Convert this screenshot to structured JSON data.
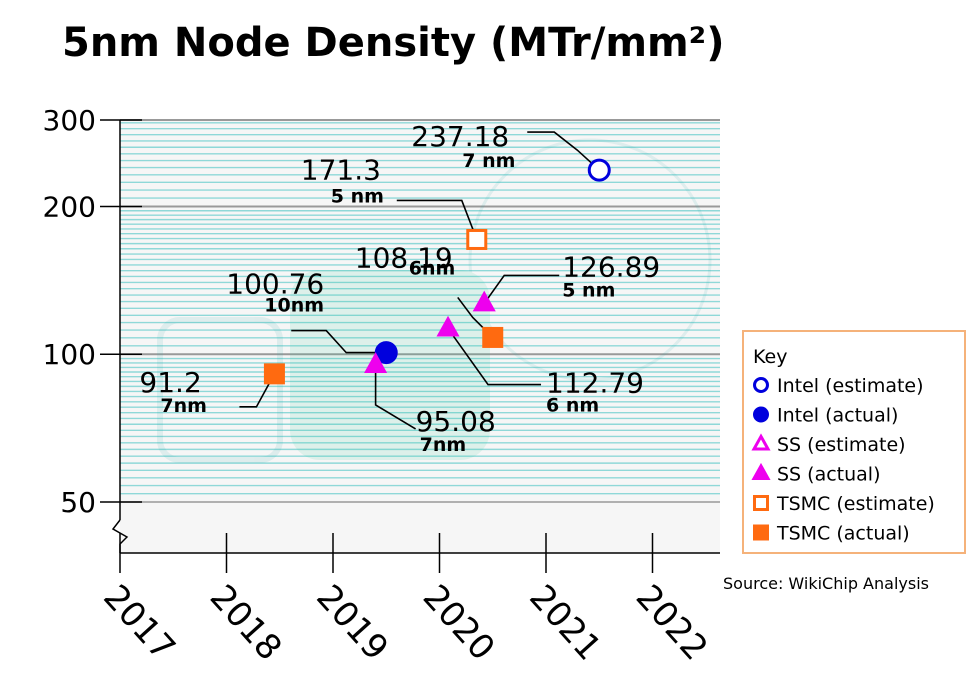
{
  "chart_data": {
    "type": "scatter",
    "title": "5nm Node Density (MTr/mm²)",
    "xlabel": "",
    "ylabel": "",
    "yscale": "log",
    "ylim": [
      44,
      300
    ],
    "xlim": [
      2017,
      2022.65
    ],
    "y_ticks": [
      "300",
      "200",
      "100",
      "50"
    ],
    "x_ticks": [
      "2017",
      "2018",
      "2019",
      "2020",
      "2021",
      "2022"
    ],
    "series": [
      {
        "name": "Intel (estimate)",
        "marker": "circle",
        "filled": false,
        "color": "#0000dd",
        "points": [
          {
            "x": 2021.5,
            "y": 237.18,
            "label": "237.18",
            "node": "7 nm"
          }
        ]
      },
      {
        "name": "Intel (actual)",
        "marker": "circle",
        "filled": true,
        "color": "#0000dd",
        "points": [
          {
            "x": 2019.5,
            "y": 100.76,
            "label": "100.76",
            "node": "10nm"
          }
        ]
      },
      {
        "name": "SS (estimate)",
        "marker": "triangle",
        "filled": false,
        "color": "#ee00ee",
        "points": []
      },
      {
        "name": "SS (actual)",
        "marker": "triangle",
        "filled": true,
        "color": "#ee00ee",
        "points": [
          {
            "x": 2019.4,
            "y": 95.08,
            "label": "95.08",
            "node": "7nm"
          },
          {
            "x": 2020.08,
            "y": 112.79,
            "label": "112.79",
            "node": "6 nm"
          },
          {
            "x": 2020.42,
            "y": 126.89,
            "label": "126.89",
            "node": "5 nm"
          }
        ]
      },
      {
        "name": "TSMC (estimate)",
        "marker": "square",
        "filled": false,
        "color": "#ff6a10",
        "points": [
          {
            "x": 2020.35,
            "y": 171.3,
            "label": "171.3",
            "node": "5 nm"
          }
        ]
      },
      {
        "name": "TSMC (actual)",
        "marker": "square",
        "filled": true,
        "color": "#ff6a10",
        "points": [
          {
            "x": 2018.45,
            "y": 91.2,
            "label": "91.2",
            "node": "7nm"
          },
          {
            "x": 2020.5,
            "y": 108.19,
            "label": "108.19",
            "node": "6nm"
          }
        ]
      }
    ],
    "legend_title": "Key",
    "legend_position": "right",
    "source": "Source: WikiChip Analysis"
  },
  "colors": {
    "grid_minor": "#8fd8d8",
    "grid_major": "#999999",
    "plot_background": "#f6f6f6",
    "legend_border": "#f5b27a"
  }
}
